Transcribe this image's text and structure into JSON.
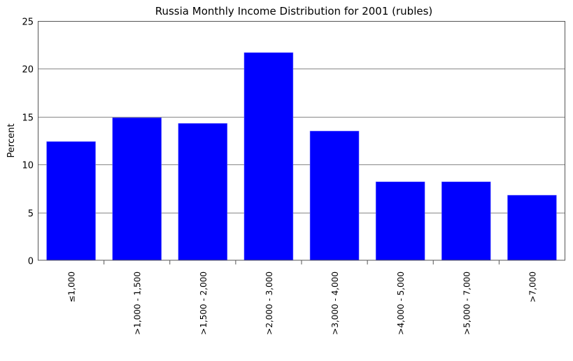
{
  "chart_data": {
    "type": "bar",
    "title": "Russia Monthly Income Distribution for 2001 (rubles)",
    "xlabel": "",
    "ylabel": "Percent",
    "ylim": [
      0,
      25
    ],
    "yticks": [
      0,
      5,
      10,
      15,
      20,
      25
    ],
    "grid": true,
    "bar_color": "#0000ff",
    "categories": [
      "≤1,000",
      ">1,000 - 1,500",
      ">1,500 - 2,000",
      ">2,000 - 3,000",
      ">3,000 - 4,000",
      ">4,000 - 5,000",
      ">5,000 - 7,000",
      ">7,000"
    ],
    "values": [
      12.4,
      14.9,
      14.3,
      21.7,
      13.5,
      8.2,
      8.2,
      6.8
    ]
  }
}
